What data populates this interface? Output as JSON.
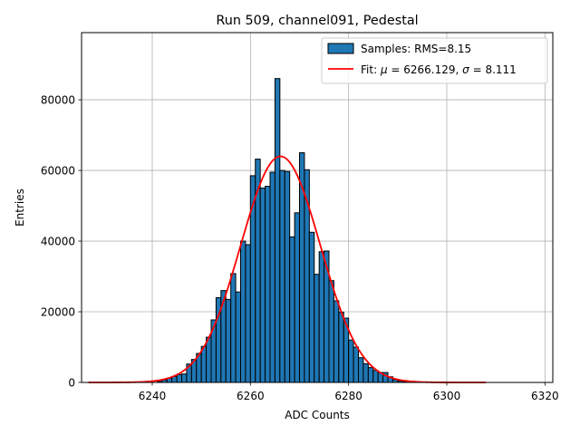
{
  "chart_data": {
    "type": "bar",
    "title": "Run 509, channel091, Pedestal",
    "xlabel": "ADC Counts",
    "ylabel": "Entries",
    "xlim": [
      6225.6,
      6321.6
    ],
    "ylim": [
      0,
      99000
    ],
    "grid": true,
    "legend_position": "top-right",
    "x_ticks": [
      6240,
      6260,
      6280,
      6300,
      6320
    ],
    "y_ticks": [
      0,
      20000,
      40000,
      60000,
      80000
    ],
    "histogram": {
      "name": "Samples: RMS=8.15",
      "color": "#1f77b4",
      "bin_width": 1,
      "bin_starts": [
        6241,
        6242,
        6243,
        6244,
        6245,
        6246,
        6247,
        6248,
        6249,
        6250,
        6251,
        6252,
        6253,
        6254,
        6255,
        6256,
        6257,
        6258,
        6259,
        6260,
        6261,
        6262,
        6263,
        6264,
        6265,
        6266,
        6267,
        6268,
        6269,
        6270,
        6271,
        6272,
        6273,
        6274,
        6275,
        6276,
        6277,
        6278,
        6279,
        6280,
        6281,
        6282,
        6283,
        6284,
        6285,
        6286,
        6287,
        6288,
        6289,
        6290,
        6291,
        6292
      ],
      "counts": [
        300,
        700,
        1200,
        1700,
        2200,
        2400,
        5200,
        6500,
        8200,
        10200,
        12800,
        17700,
        24000,
        26000,
        23500,
        30800,
        25600,
        40000,
        39000,
        58500,
        63200,
        55000,
        55500,
        59500,
        86000,
        60000,
        59700,
        41200,
        48000,
        65000,
        60200,
        42500,
        30600,
        37000,
        37200,
        28800,
        23100,
        19900,
        18200,
        12000,
        10000,
        7000,
        5300,
        4200,
        3400,
        2800,
        2800,
        1600,
        800,
        400,
        150,
        50
      ]
    },
    "fit": {
      "name": "Fit: $\\mu$ = 6266.129, $\\sigma$ = 8.111",
      "color": "#ff0000",
      "mu": 6266.129,
      "sigma": 8.111,
      "amplitude": 64000,
      "x_range": [
        6227,
        6308
      ]
    }
  }
}
